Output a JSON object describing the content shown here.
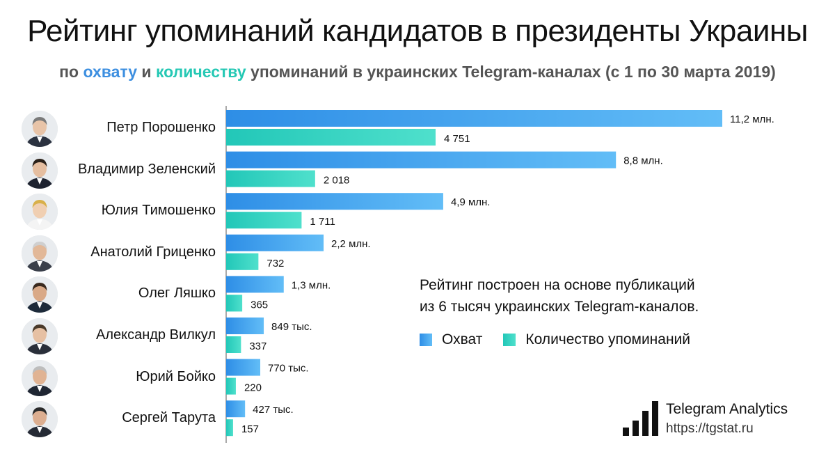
{
  "title": "Рейтинг упоминаний кандидатов в президенты Украины",
  "subtitle": {
    "part1": "по ",
    "reach_word": "охвату",
    "part2": " и ",
    "count_word": "количеству",
    "part3": " упоминаний в украинских Telegram-каналах (с 1 по 30 марта 2019)"
  },
  "note_lines": [
    "Рейтинг построен на основе публикаций",
    "из 6 тысяч украинских Telegram-каналов."
  ],
  "brand": {
    "name": "Telegram Analytics",
    "url": "https://tgstat.ru",
    "logo_icon": "bar-chart-logo-icon"
  },
  "colors": {
    "reach": "#2e8ee6",
    "reach_light": "#62bdf7",
    "count": "#22c7b8",
    "count_light": "#4fe0cc"
  },
  "chart_data": {
    "type": "bar",
    "orientation": "horizontal",
    "categories": [
      "Петр Порошенко",
      "Владимир Зеленский",
      "Юлия Тимошенко",
      "Анатолий Гриценко",
      "Олег Ляшко",
      "Александр Вилкул",
      "Юрий Бойко",
      "Сергей Тарута"
    ],
    "series": [
      {
        "name": "Охват",
        "values": [
          11200000,
          8800000,
          4900000,
          2200000,
          1300000,
          849000,
          770000,
          427000
        ],
        "labels": [
          "11,2 млн.",
          "8,8 млн.",
          "4,9 млн.",
          "2,2 млн.",
          "1,3 млн.",
          "849 тыс.",
          "770 тыс.",
          "427 тыс."
        ]
      },
      {
        "name": "Количество упоминаний",
        "values": [
          4751,
          2018,
          1711,
          732,
          365,
          337,
          220,
          157
        ],
        "labels": [
          "4 751",
          "2 018",
          "1 711",
          "732",
          "365",
          "337",
          "220",
          "157"
        ]
      }
    ],
    "legend": "right-middle",
    "grid": false
  }
}
